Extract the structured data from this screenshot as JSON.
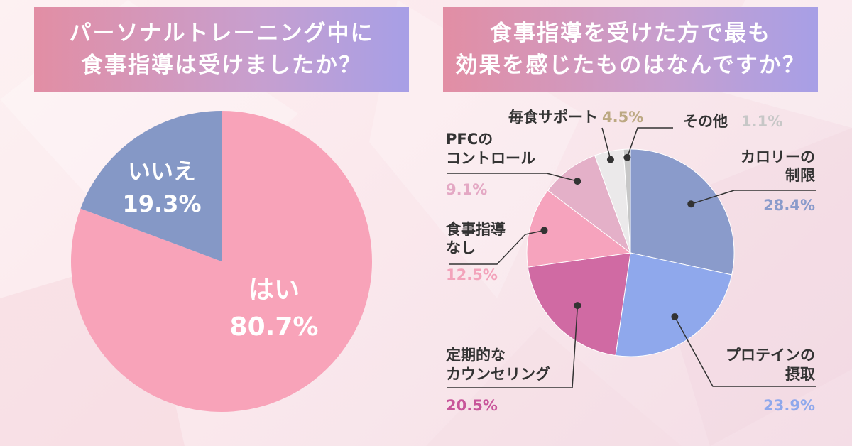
{
  "left": {
    "title_lines": [
      "パーソナルトレーニング中に",
      "食事指導は受けましたか？"
    ]
  },
  "right": {
    "title_lines": [
      "食事指導を受けた方で最も",
      "効果を感じたものはなんですか？"
    ]
  },
  "colors": {
    "yes": "#f8a3b9",
    "no": "#8598c6",
    "calorie": "#8a9bcb",
    "protein": "#8fa8ec",
    "counseling": "#d06aa3",
    "none": "#f6a3bd",
    "pfc": "#e4b0c8",
    "meal_support": "#ebe9ea",
    "other": "#c7c7c7"
  },
  "chart_data": [
    {
      "type": "pie",
      "title": "パーソナルトレーニング中に食事指導は受けましたか？",
      "slices": [
        {
          "label": "はい",
          "value": 80.7,
          "display": "80.7%"
        },
        {
          "label": "いいえ",
          "value": 19.3,
          "display": "19.3%"
        }
      ]
    },
    {
      "type": "pie",
      "title": "食事指導を受けた方で最も効果を感じたものはなんですか？",
      "slices": [
        {
          "label": "カロリーの制限",
          "label_lines": [
            "カロリーの",
            "制限"
          ],
          "value": 28.4,
          "display": "28.4%"
        },
        {
          "label": "プロテインの摂取",
          "label_lines": [
            "プロテインの",
            "摂取"
          ],
          "value": 23.9,
          "display": "23.9%"
        },
        {
          "label": "定期的なカウンセリング",
          "label_lines": [
            "定期的な",
            "カウンセリング"
          ],
          "value": 20.5,
          "display": "20.5%"
        },
        {
          "label": "食事指導なし",
          "label_lines": [
            "食事指導",
            "なし"
          ],
          "value": 12.5,
          "display": "12.5%"
        },
        {
          "label": "PFCのコントロール",
          "label_lines": [
            "PFCの",
            "コントロール"
          ],
          "value": 9.1,
          "display": "9.1%"
        },
        {
          "label": "毎食サポート",
          "label_lines": [
            "毎食サポート"
          ],
          "value": 4.5,
          "display": "4.5%"
        },
        {
          "label": "その他",
          "label_lines": [
            "その他"
          ],
          "value": 1.1,
          "display": "1.1%"
        }
      ]
    }
  ]
}
